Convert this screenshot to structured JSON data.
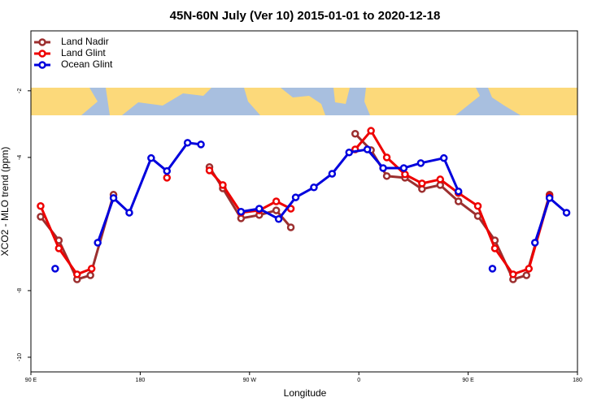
{
  "chart_data": {
    "type": "line",
    "title": "45N-60N July (Ver 10)   2015-01-01 to 2020-12-18",
    "x_label": "Longitude",
    "y_label": "XCO2 - MLO trend (ppm)",
    "xlim": [
      90,
      540
    ],
    "ylim": [
      -10.44,
      -0.2
    ],
    "xticks": [
      {
        "value": 90,
        "label": "90 E"
      },
      180,
      {
        "value": 270,
        "label": "90 W"
      },
      {
        "value": 360,
        "label": "0"
      },
      {
        "value": 450,
        "label": "90 E"
      },
      {
        "value": 540,
        "label": "180"
      }
    ],
    "yticks": [
      -2,
      -4,
      -8,
      -10
    ],
    "legend": "top-left",
    "series": [
      {
        "name": "Land Nadir",
        "color": "#9c2f2f",
        "x": [
          98,
          113,
          128,
          139,
          158,
          null,
          237,
          248,
          263,
          278,
          292,
          304,
          null,
          357,
          370,
          383,
          398,
          412,
          427,
          442,
          458,
          472,
          487,
          498,
          517
        ],
        "values": [
          -5.78,
          -6.49,
          -7.66,
          -7.54,
          -5.12,
          null,
          -4.29,
          -4.93,
          -5.83,
          -5.73,
          -5.59,
          -6.1,
          null,
          -3.29,
          -3.78,
          -4.56,
          -4.61,
          -4.95,
          -4.83,
          -5.32,
          -5.76,
          -6.49,
          -7.66,
          -7.54,
          -5.12
        ]
      },
      {
        "name": "Land Glint",
        "color": "#ee0000",
        "x": [
          98,
          113,
          128,
          140,
          null,
          202,
          null,
          237,
          248,
          263,
          278,
          292,
          304,
          null,
          357,
          370,
          383,
          398,
          412,
          427,
          442,
          458,
          472,
          487,
          500,
          517
        ],
        "values": [
          -5.46,
          -6.73,
          -7.51,
          -7.34,
          null,
          -4.61,
          null,
          -4.39,
          -4.83,
          -5.66,
          -5.59,
          -5.32,
          -5.54,
          null,
          -3.76,
          -3.2,
          -4.0,
          -4.51,
          -4.78,
          -4.66,
          -5.07,
          -5.46,
          -6.73,
          -7.51,
          -7.34,
          -5.17
        ]
      },
      {
        "name": "Ocean Glint",
        "color": "#0000dd",
        "x": [
          110,
          null,
          145,
          158,
          171,
          189,
          202,
          219,
          230,
          null,
          263,
          278,
          294,
          308,
          323,
          338,
          352,
          367,
          380,
          397,
          411,
          430,
          442,
          null,
          470,
          null,
          505,
          517,
          531
        ],
        "values": [
          -7.34,
          null,
          -6.56,
          -5.22,
          -5.66,
          -4.02,
          -4.41,
          -3.56,
          -3.61,
          null,
          -5.63,
          -5.54,
          -5.85,
          -5.2,
          -4.9,
          -4.49,
          -3.85,
          -3.76,
          -4.32,
          -4.32,
          -4.17,
          -4.02,
          -5.02,
          null,
          -7.34,
          null,
          -6.56,
          -5.22,
          -5.66
        ]
      }
    ]
  }
}
